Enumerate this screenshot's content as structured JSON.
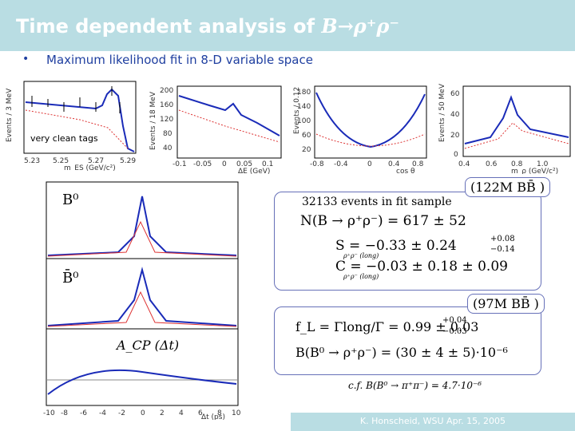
{
  "title": {
    "prefix": "Time dependent analysis of ",
    "decay": "B→ρ⁺ρ⁻"
  },
  "bullet": "Maximum likelihood fit in 8-D variable space",
  "tag": "very clean tags",
  "plots": {
    "mes": {
      "ylabel": "Events / 3 MeV",
      "xlabel": "m_ES (GeV/c²)",
      "ticks": [
        "5.23",
        "5.25",
        "5.27",
        "5.29"
      ]
    },
    "de": {
      "ylabel": "Events / 18 MeV",
      "xlabel": "ΔE (GeV)",
      "yticks": [
        "200",
        "160",
        "120",
        "80",
        "40"
      ],
      "ticks": [
        "-0.1",
        "-0.05",
        "0",
        "0.05",
        "0.1"
      ]
    },
    "cos": {
      "ylabel": "Events / 0.12",
      "xlabel": "cos θ",
      "yticks": [
        "180",
        "140",
        "100",
        "60",
        "20"
      ],
      "ticks": [
        "-0.8",
        "-0.4",
        "0",
        "0.4",
        "0.8"
      ]
    },
    "mrho": {
      "ylabel": "Events / 50 MeV",
      "xlabel": "m_ρ (GeV/c²)",
      "yticks": [
        "60",
        "40",
        "20",
        "0"
      ],
      "ticks": [
        "0.4",
        "0.6",
        "0.8",
        "1.0"
      ]
    },
    "dt": {
      "b0": "B⁰",
      "b0bar": "B̄⁰",
      "acp": "A_CP (Δt)",
      "xlabel": "Δt (ps)",
      "ticks": [
        "-10",
        "-8",
        "-6",
        "-4",
        "-2",
        "0",
        "2",
        "4",
        "6",
        "8",
        "10"
      ]
    }
  },
  "results1": {
    "header": "32133 events in fit sample",
    "bb": "(122M BB̄ )",
    "n": "N(B → ρ⁺ρ⁻) = 617 ± 52",
    "s": "S = −0.33 ± 0.24",
    "s_sup": "+0.08",
    "s_sub": "−0.14",
    "s_lbl": "ρ⁺ρ⁻ (long)",
    "c": "C = −0.03 ± 0.18 ± 0.09",
    "c_lbl": "ρ⁺ρ⁻ (long)"
  },
  "results2": {
    "bb": "(97M BB̄ )",
    "fl": "f_L = Γlong/Γ = 0.99 ± 0.03",
    "fl_sup": "+0.04",
    "fl_sub": "−0.03",
    "br": "B(B⁰ → ρ⁺ρ⁻) = (30 ± 4 ± 5)·10⁻⁶"
  },
  "cf": {
    "text": "c.f.  B(B⁰ → π⁺π⁻) = 4.7·10⁻⁶"
  },
  "footer": "K. Honscheid, WSU Apr. 15, 2005"
}
